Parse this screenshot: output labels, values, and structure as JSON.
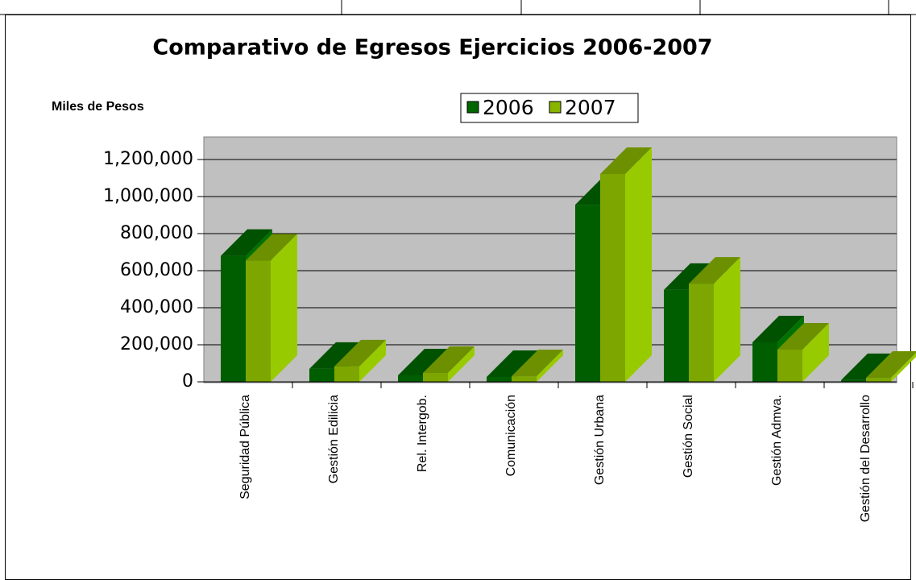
{
  "chart_data": {
    "type": "bar3d",
    "title": "Comparativo de Egresos Ejercicios 2006-2007",
    "y_label": "Miles de Pesos",
    "categories": [
      "Seguridad Pública",
      "Gestión Edilicia",
      "Rel. Intergob.",
      "Comunicación",
      "Gestión Urbana",
      "Gestión Social",
      "Gestión Admva.",
      "Gestión del Desarrollo"
    ],
    "series": [
      {
        "name": "2006",
        "color": "#006600",
        "values": [
          680000,
          70000,
          35000,
          26000,
          956000,
          496000,
          213000,
          9000
        ]
      },
      {
        "name": "2007",
        "color": "#88b400",
        "values": [
          655000,
          83000,
          48000,
          30000,
          1122000,
          530000,
          174000,
          22000
        ]
      }
    ],
    "ylim": [
      0,
      1200000
    ],
    "yticks": [
      0,
      {
        "value": 200000,
        "label": "200,000"
      },
      {
        "value": 400000,
        "label": "400,000"
      },
      {
        "value": 600000,
        "label": "600,000"
      },
      {
        "value": 800000,
        "label": "800,000"
      },
      {
        "value": 1000000,
        "label": "1,000,000"
      },
      {
        "value": 1200000,
        "label": "1,200,000"
      }
    ],
    "grid": true
  }
}
